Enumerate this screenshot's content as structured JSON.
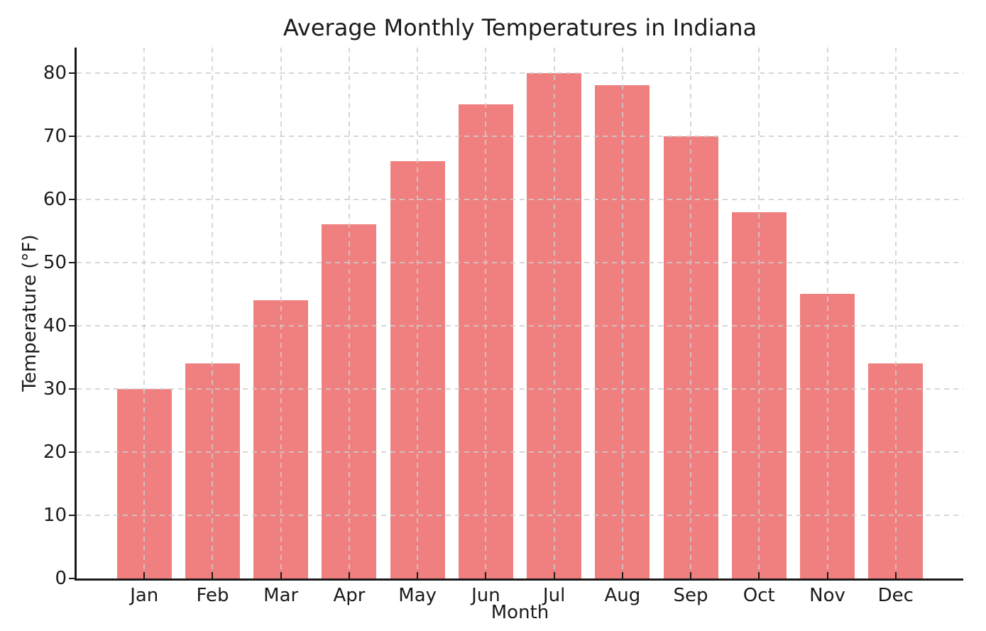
{
  "chart_data": {
    "type": "bar",
    "title": "Average Monthly Temperatures in Indiana",
    "xlabel": "Month",
    "ylabel": "Temperature (°F)",
    "categories": [
      "Jan",
      "Feb",
      "Mar",
      "Apr",
      "May",
      "Jun",
      "Jul",
      "Aug",
      "Sep",
      "Oct",
      "Nov",
      "Dec"
    ],
    "values": [
      30,
      34,
      44,
      56,
      66,
      75,
      80,
      78,
      70,
      58,
      45,
      34
    ],
    "yticks": [
      0,
      10,
      20,
      30,
      40,
      50,
      60,
      70,
      80
    ],
    "ylim": [
      0,
      84
    ],
    "grid": true,
    "legend": "none",
    "bar_color": "#F08080",
    "grid_color": "#cdcdcd",
    "axis_color": "#1b1b1b",
    "text_color": "#1b1b1b"
  }
}
